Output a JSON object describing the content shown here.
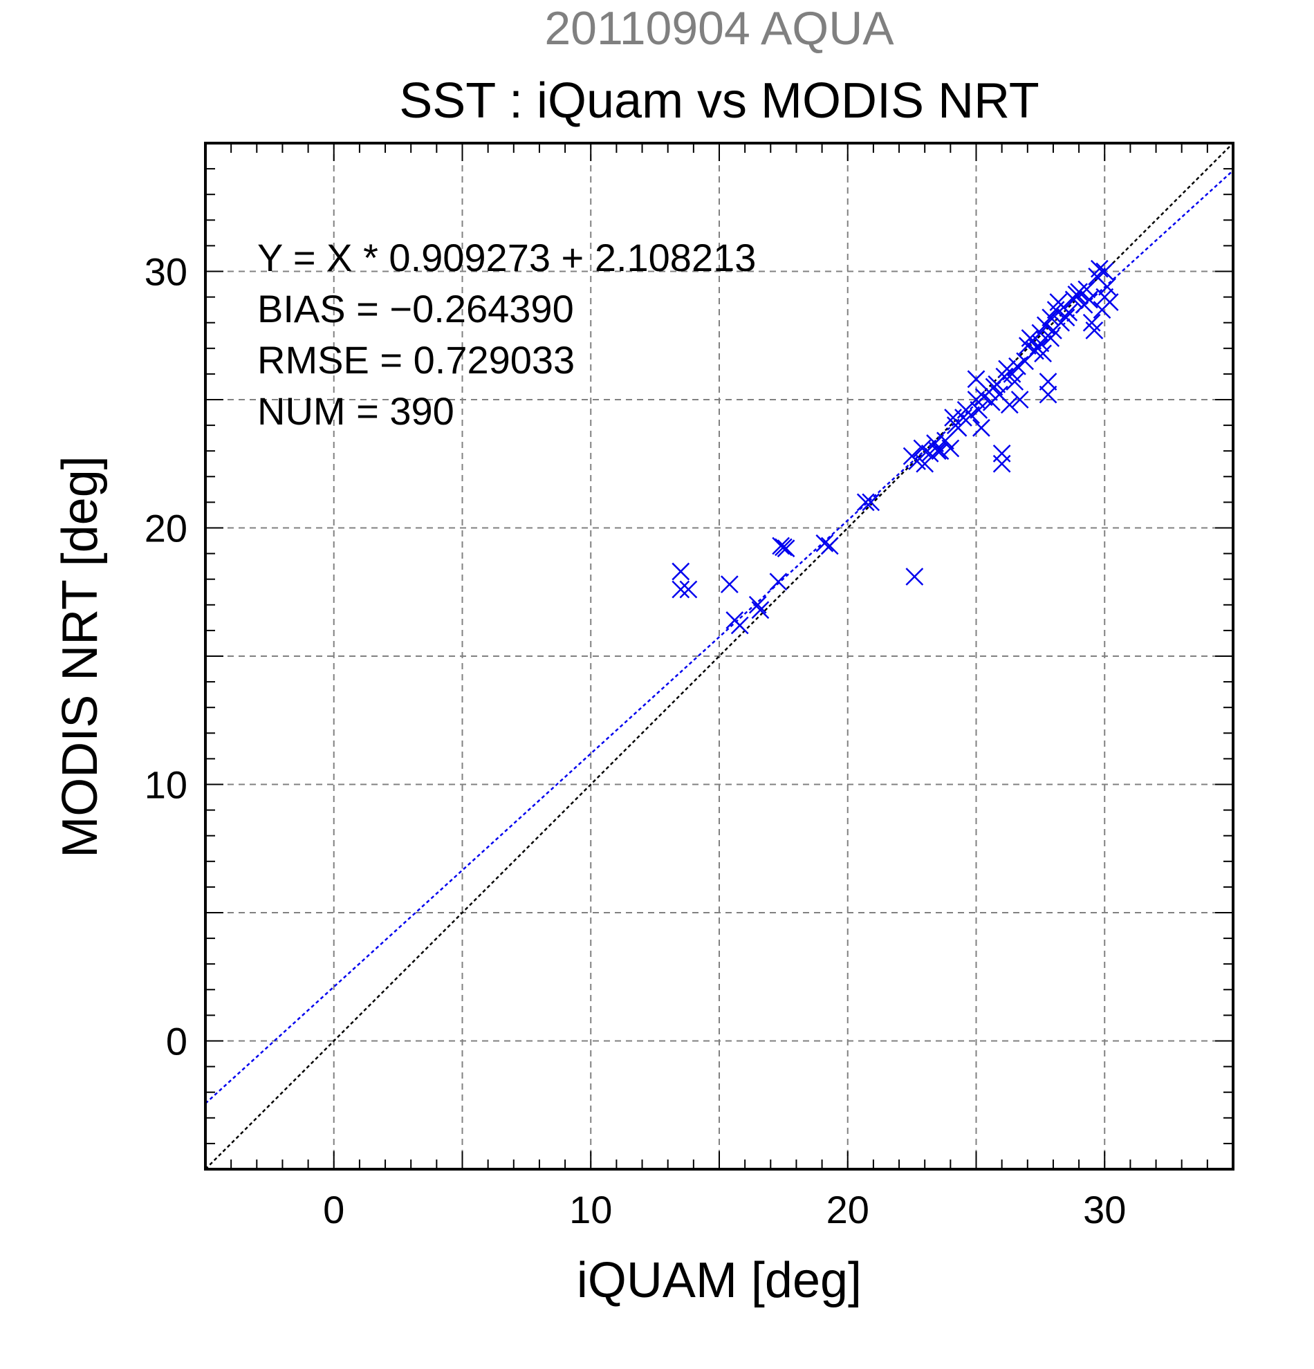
{
  "chart_data": {
    "type": "scatter",
    "supertitle": "20110904 AQUA",
    "title": "SST : iQuam vs MODIS NRT",
    "xlabel": "iQUAM [deg]",
    "ylabel": "MODIS NRT [deg]",
    "xlim": [
      -5,
      35
    ],
    "ylim": [
      -5,
      35
    ],
    "xticks": [
      0,
      10,
      20,
      30
    ],
    "yticks": [
      0,
      10,
      20,
      30
    ],
    "xtick_labels": [
      "0",
      "10",
      "20",
      "30"
    ],
    "ytick_labels": [
      "0",
      "10",
      "20",
      "30"
    ],
    "grid": true,
    "grid_step": 5,
    "minor_tick_step": 1,
    "stats": {
      "equation": "Y = X * 0.909273 + 2.108213",
      "bias": "BIAS = −0.264390",
      "rmse": "RMSE = 0.729033",
      "num": "NUM = 390"
    },
    "fit_line": {
      "slope": 0.909273,
      "intercept": 2.108213,
      "color": "#0000ee"
    },
    "identity_line": {
      "slope": 1,
      "intercept": 0,
      "color": "#000000"
    },
    "marker": {
      "shape": "x",
      "color": "#0000ee"
    },
    "points": [
      [
        13.5,
        18.3
      ],
      [
        13.5,
        17.6
      ],
      [
        13.8,
        17.6
      ],
      [
        15.4,
        17.8
      ],
      [
        15.6,
        16.4
      ],
      [
        15.8,
        16.2
      ],
      [
        16.5,
        17.0
      ],
      [
        16.6,
        16.8
      ],
      [
        17.3,
        17.9
      ],
      [
        17.4,
        19.3
      ],
      [
        17.6,
        19.2
      ],
      [
        17.5,
        19.25
      ],
      [
        19.1,
        19.4
      ],
      [
        19.3,
        19.3
      ],
      [
        20.7,
        21.0
      ],
      [
        20.9,
        21.0
      ],
      [
        22.6,
        18.1
      ],
      [
        22.5,
        22.8
      ],
      [
        22.7,
        22.6
      ],
      [
        22.9,
        23.1
      ],
      [
        23.0,
        22.5
      ],
      [
        23.2,
        22.9
      ],
      [
        23.4,
        23.3
      ],
      [
        23.6,
        23.0
      ],
      [
        23.8,
        23.4
      ],
      [
        24.0,
        23.1
      ],
      [
        24.1,
        24.3
      ],
      [
        24.3,
        23.9
      ],
      [
        24.5,
        24.3
      ],
      [
        24.6,
        24.6
      ],
      [
        24.8,
        24.4
      ],
      [
        25.0,
        25.0
      ],
      [
        25.1,
        24.6
      ],
      [
        25.0,
        25.8
      ],
      [
        25.2,
        23.9
      ],
      [
        25.3,
        25.1
      ],
      [
        25.5,
        25.3
      ],
      [
        25.6,
        24.9
      ],
      [
        25.8,
        25.6
      ],
      [
        25.9,
        25.2
      ],
      [
        26.0,
        22.9
      ],
      [
        26.0,
        22.5
      ],
      [
        26.1,
        25.9
      ],
      [
        26.2,
        26.2
      ],
      [
        26.3,
        24.8
      ],
      [
        26.4,
        26.0
      ],
      [
        26.6,
        26.3
      ],
      [
        26.7,
        25.0
      ],
      [
        27.0,
        27.1
      ],
      [
        27.2,
        27.3
      ],
      [
        27.4,
        27.0
      ],
      [
        27.5,
        27.6
      ],
      [
        27.6,
        26.8
      ],
      [
        27.7,
        27.9
      ],
      [
        27.8,
        25.7
      ],
      [
        27.8,
        25.2
      ],
      [
        27.9,
        28.2
      ],
      [
        28.0,
        27.7
      ],
      [
        28.1,
        28.5
      ],
      [
        28.2,
        28.8
      ],
      [
        28.3,
        28.0
      ],
      [
        28.4,
        28.6
      ],
      [
        28.6,
        28.4
      ],
      [
        28.8,
        28.9
      ],
      [
        29.0,
        29.2
      ],
      [
        29.2,
        28.7
      ],
      [
        29.4,
        28.9
      ],
      [
        29.5,
        28.0
      ],
      [
        29.6,
        27.7
      ],
      [
        29.7,
        29.8
      ],
      [
        29.8,
        30.1
      ],
      [
        29.9,
        28.5
      ],
      [
        30.0,
        30.0
      ],
      [
        30.1,
        29.4
      ],
      [
        30.2,
        28.8
      ],
      [
        30.0,
        29.0
      ],
      [
        27.3,
        26.9
      ],
      [
        27.5,
        27.2
      ],
      [
        27.9,
        27.4
      ],
      [
        28.5,
        28.2
      ],
      [
        26.5,
        25.7
      ],
      [
        25.7,
        25.5
      ],
      [
        24.2,
        24.0
      ],
      [
        23.5,
        23.0
      ],
      [
        27.1,
        27.4
      ],
      [
        28.9,
        29.1
      ],
      [
        29.3,
        29.3
      ],
      [
        26.9,
        26.5
      ]
    ]
  }
}
